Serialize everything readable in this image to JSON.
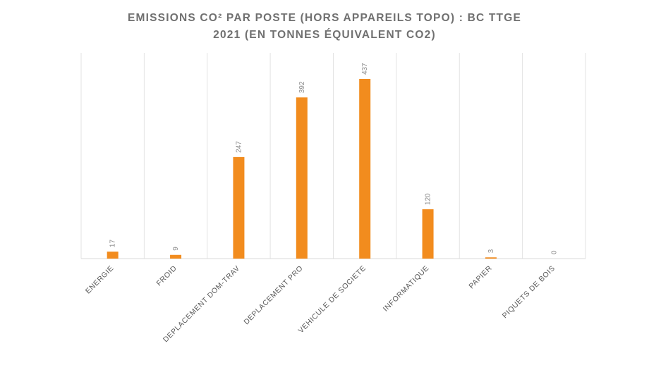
{
  "chart_data": {
    "type": "bar",
    "title_lines": [
      "EMISSIONS CO² PAR POSTE (HORS APPAREILS TOPO) : BC TTGE",
      "2021 (EN TONNES ÉQUIVALENT CO2)"
    ],
    "categories": [
      "ENERGIE",
      "FROID",
      "DEPLACEMENT DOM-TRAV",
      "DEPLACEMENT PRO",
      "VEHICULE DE SOCIETE",
      "INFORMATIQUE",
      "PAPIER",
      "PIQUETS DE BOIS"
    ],
    "values": [
      17,
      9,
      247,
      392,
      437,
      120,
      3,
      0
    ],
    "value_labels": [
      "17",
      "9",
      "247",
      "392",
      "437",
      "120",
      "3",
      "0"
    ],
    "ylim": [
      0,
      500
    ],
    "grid": "vertical separators between categories",
    "bar_color": "#F28C1E",
    "grid_color": "#E3E3E3",
    "legend": "none"
  }
}
